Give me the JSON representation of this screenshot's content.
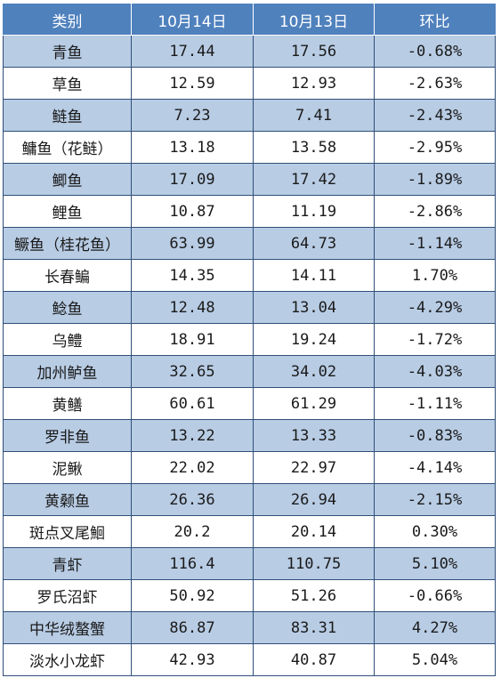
{
  "table": {
    "headers": [
      "类别",
      "10月14日",
      "10月13日",
      "环比"
    ],
    "rows": [
      [
        "青鱼",
        "17.44",
        "17.56",
        "-0.68%"
      ],
      [
        "草鱼",
        "12.59",
        "12.93",
        "-2.63%"
      ],
      [
        "鲢鱼",
        "7.23",
        "7.41",
        "-2.43%"
      ],
      [
        "鳙鱼（花鲢）",
        "13.18",
        "13.58",
        "-2.95%"
      ],
      [
        "鲫鱼",
        "17.09",
        "17.42",
        "-1.89%"
      ],
      [
        "鲤鱼",
        "10.87",
        "11.19",
        "-2.86%"
      ],
      [
        "鳜鱼（桂花鱼）",
        "63.99",
        "64.73",
        "-1.14%"
      ],
      [
        "长春鳊",
        "14.35",
        "14.11",
        "1.70%"
      ],
      [
        "鲶鱼",
        "12.48",
        "13.04",
        "-4.29%"
      ],
      [
        "乌鳢",
        "18.91",
        "19.24",
        "-1.72%"
      ],
      [
        "加州鲈鱼",
        "32.65",
        "34.02",
        "-4.03%"
      ],
      [
        "黄鳝",
        "60.61",
        "61.29",
        "-1.11%"
      ],
      [
        "罗非鱼",
        "13.22",
        "13.33",
        "-0.83%"
      ],
      [
        "泥鳅",
        "22.02",
        "22.97",
        "-4.14%"
      ],
      [
        "黄颡鱼",
        "26.36",
        "26.94",
        "-2.15%"
      ],
      [
        "斑点叉尾鮰",
        "20.2",
        "20.14",
        "0.30%"
      ],
      [
        "青虾",
        "116.4",
        "110.75",
        "5.10%"
      ],
      [
        "罗氏沼虾",
        "50.92",
        "51.26",
        "-0.66%"
      ],
      [
        "中华绒螯蟹",
        "86.87",
        "83.31",
        "4.27%"
      ],
      [
        "淡水小龙虾",
        "42.93",
        "40.87",
        "5.04%"
      ]
    ]
  },
  "colors": {
    "header_bg": "#4f81bd",
    "band_bg": "#b8cce4",
    "border": "#2f4f7a"
  }
}
